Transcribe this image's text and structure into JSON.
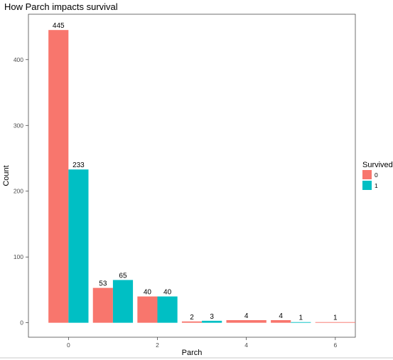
{
  "chart_data": {
    "type": "bar",
    "title": "How Parch impacts survival",
    "xlabel": "Parch",
    "ylabel": "Count",
    "xlim": [
      -0.9,
      6.45
    ],
    "ylim": [
      -22,
      469
    ],
    "x_ticks": [
      0,
      2,
      4,
      6
    ],
    "y_ticks": [
      0,
      100,
      200,
      300,
      400
    ],
    "grid": false,
    "legend": {
      "title": "Survived",
      "position": "right"
    },
    "bar_width": 0.9,
    "series": [
      {
        "name": "0",
        "color": "#F8766D",
        "points": [
          {
            "x": 0,
            "y": 445
          },
          {
            "x": 1,
            "y": 53
          },
          {
            "x": 2,
            "y": 40
          },
          {
            "x": 3,
            "y": 2
          },
          {
            "x": 4,
            "y": 4
          },
          {
            "x": 5,
            "y": 4
          }
        ]
      },
      {
        "name": "1",
        "color": "#00BFC4",
        "points": [
          {
            "x": 0,
            "y": 233
          },
          {
            "x": 1,
            "y": 65
          },
          {
            "x": 2,
            "y": 40
          },
          {
            "x": 3,
            "y": 3
          },
          {
            "x": 5,
            "y": 1
          }
        ]
      }
    ],
    "full_width_bars": [
      {
        "x": 4,
        "y": 4,
        "series": "0"
      },
      {
        "x": 6,
        "y": 1,
        "series": "0"
      }
    ]
  }
}
